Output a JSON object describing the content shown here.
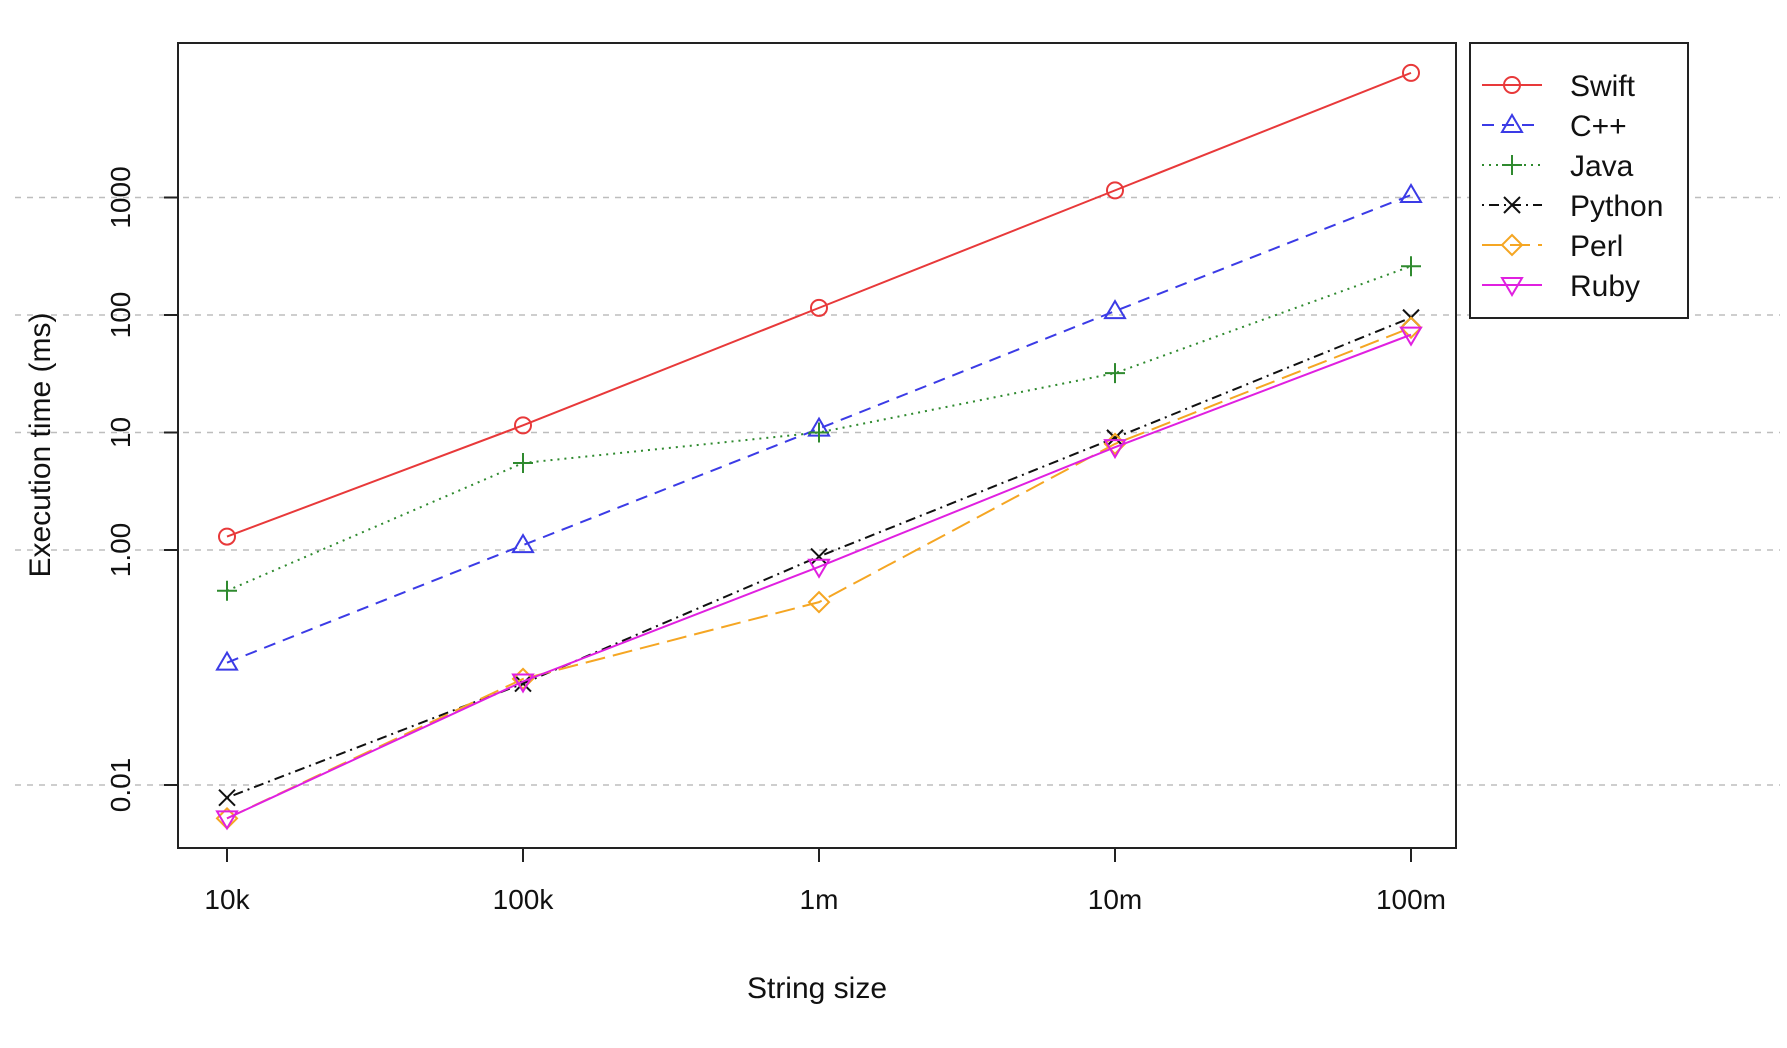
{
  "chart_data": {
    "type": "line",
    "title": "",
    "xlabel": "String size",
    "ylabel": "Execution time (ms)",
    "y_scale": "log",
    "ylim": [
      0.0025,
      50000
    ],
    "grid": "horizontal dashed at y ticks",
    "legend_position": "top-right, outside plot",
    "categories": [
      "10k",
      "100k",
      "1m",
      "10m",
      "100m"
    ],
    "yticks": [
      {
        "value": 0.01,
        "label": "0.01"
      },
      {
        "value": 1,
        "label": "1.00"
      },
      {
        "value": 10,
        "label": "10"
      },
      {
        "value": 100,
        "label": "100"
      },
      {
        "value": 1000,
        "label": "1000"
      }
    ],
    "series": [
      {
        "name": "Swift",
        "color": "#e8393a",
        "marker": "circle",
        "dash": "solid",
        "values": [
          1.3,
          11.5,
          115,
          1150,
          11500
        ]
      },
      {
        "name": "C++",
        "color": "#3b3be6",
        "marker": "triangle-up",
        "dash": "dashed",
        "values": [
          0.11,
          1.1,
          10.8,
          108,
          1050
        ]
      },
      {
        "name": "Java",
        "color": "#2f8a2f",
        "marker": "plus",
        "dash": "dotted",
        "values": [
          0.45,
          5.5,
          10,
          32,
          260
        ]
      },
      {
        "name": "Python",
        "color": "#111111",
        "marker": "x",
        "dash": "dotdash",
        "values": [
          0.0078,
          0.073,
          0.88,
          9,
          95
        ]
      },
      {
        "name": "Perl",
        "color": "#f5a623",
        "marker": "diamond",
        "dash": "longdash",
        "values": [
          0.0052,
          0.08,
          0.36,
          8,
          78
        ]
      },
      {
        "name": "Ruby",
        "color": "#e020e0",
        "marker": "triangle-down",
        "dash": "solid",
        "values": [
          0.0052,
          0.076,
          0.72,
          7.5,
          68
        ]
      }
    ]
  }
}
